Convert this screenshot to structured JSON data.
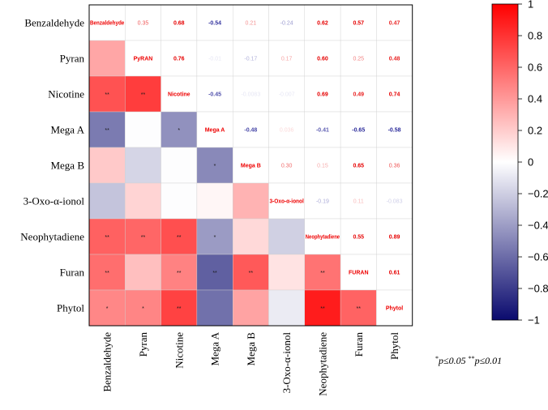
{
  "chart_data": {
    "type": "heatmap",
    "title": "",
    "variables": [
      "Benzaldehyde",
      "Pyran",
      "Nicotine",
      "Mega A",
      "Mega B",
      "3-Oxo-α-ionol",
      "Neophytadiene",
      "Furan",
      "Phytol"
    ],
    "diagonal_labels": [
      "Benzaldehyde",
      "PyRAN",
      "Nicotine",
      "Mega A",
      "Mega  B",
      "3-Oxo-α-ionol",
      "Neophytadiene",
      "FURAN",
      "Phytol"
    ],
    "upper_values": [
      [
        null,
        0.35,
        0.68,
        -0.54,
        0.21,
        -0.24,
        0.62,
        0.57,
        0.47
      ],
      [
        null,
        null,
        0.76,
        -0.01,
        -0.17,
        0.17,
        0.6,
        0.25,
        0.48
      ],
      [
        null,
        null,
        null,
        -0.45,
        -0.0083,
        -0.007,
        0.69,
        0.49,
        0.74
      ],
      [
        null,
        null,
        null,
        null,
        -0.48,
        0.036,
        -0.41,
        -0.65,
        -0.58
      ],
      [
        null,
        null,
        null,
        null,
        null,
        0.3,
        0.15,
        0.65,
        0.36
      ],
      [
        null,
        null,
        null,
        null,
        null,
        null,
        -0.19,
        0.11,
        -0.083
      ],
      [
        null,
        null,
        null,
        null,
        null,
        null,
        null,
        0.55,
        0.89
      ],
      [
        null,
        null,
        null,
        null,
        null,
        null,
        null,
        null,
        0.61
      ],
      [
        null,
        null,
        null,
        null,
        null,
        null,
        null,
        null,
        null
      ]
    ],
    "upper_text": [
      [
        null,
        "0.35",
        "0.68",
        "-0.54",
        "0.21",
        "-0.24",
        "0.62",
        "0.57",
        "0.47"
      ],
      [
        null,
        null,
        "0.76",
        "-0.01",
        "-0.17",
        "0.17",
        "0.60",
        "0.25",
        "0.48"
      ],
      [
        null,
        null,
        null,
        "-0.45",
        "-0.0083",
        "-0.007",
        "0.69",
        "0.49",
        "0.74"
      ],
      [
        null,
        null,
        null,
        null,
        "-0.48",
        "0.036",
        "-0.41",
        "-0.65",
        "-0.58"
      ],
      [
        null,
        null,
        null,
        null,
        null,
        "0.30",
        "0.15",
        "0.65",
        "0.36"
      ],
      [
        null,
        null,
        null,
        null,
        null,
        null,
        "-0.19",
        "0.11",
        "-0.083"
      ],
      [
        null,
        null,
        null,
        null,
        null,
        null,
        null,
        "0.55",
        "0.89"
      ],
      [
        null,
        null,
        null,
        null,
        null,
        null,
        null,
        null,
        "0.61"
      ],
      [
        null,
        null,
        null,
        null,
        null,
        null,
        null,
        null,
        null
      ]
    ],
    "lower_significance": [
      [
        null,
        null,
        null,
        null,
        null,
        null,
        null,
        null,
        null
      ],
      [
        "",
        null,
        null,
        null,
        null,
        null,
        null,
        null,
        null
      ],
      [
        "**",
        "**",
        null,
        null,
        null,
        null,
        null,
        null,
        null
      ],
      [
        "**",
        "",
        "*",
        null,
        null,
        null,
        null,
        null,
        null
      ],
      [
        "",
        "",
        "",
        "*",
        null,
        null,
        null,
        null,
        null
      ],
      [
        "",
        "",
        "",
        "",
        "",
        null,
        null,
        null,
        null
      ],
      [
        "**",
        "**",
        "**",
        "*",
        "",
        "",
        null,
        null,
        null
      ],
      [
        "**",
        "",
        "**",
        "**",
        "**",
        "",
        "**",
        null,
        null
      ],
      [
        "*",
        "*",
        "**",
        "",
        "",
        "",
        "**",
        "**",
        null
      ]
    ],
    "colorbar": {
      "min": -1,
      "max": 1,
      "ticks": [
        1,
        0.8,
        0.6,
        0.4,
        0.2,
        0,
        -0.2,
        -0.4,
        -0.6,
        -0.8,
        -1
      ],
      "tick_labels": [
        "1",
        "0.8",
        "0.6",
        "0.4",
        "0.2",
        "0",
        "−0.2",
        "−0.4",
        "−0.6",
        "−0.8",
        "−1"
      ],
      "colors": {
        "negative": "#0a0a6e",
        "zero": "#ffffff",
        "positive": "#ff0000"
      }
    },
    "text_colors": {
      "positive": "#e60000",
      "negative": "#2a2a9a",
      "diagonal": "#ee0000"
    }
  },
  "footnote": {
    "sig1_marker": "*",
    "sig1_text": "p≤0.05",
    "sig2_marker": "**",
    "sig2_text": "p≤0.01"
  }
}
